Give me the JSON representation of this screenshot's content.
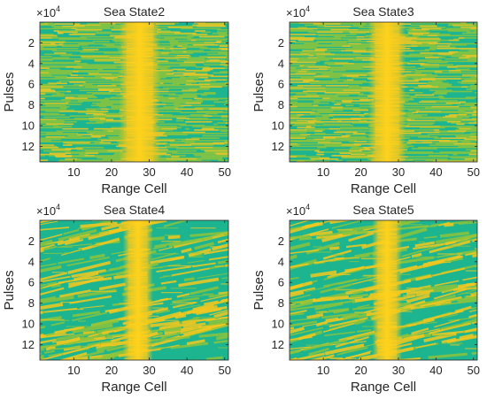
{
  "figure": {
    "multiplier": "×10",
    "multiplier_exp": "4"
  },
  "chart_data": [
    {
      "type": "heatmap",
      "title": "Sea State2",
      "xlabel": "Range Cell",
      "ylabel": "Pulses",
      "x_ticks": [
        10,
        20,
        30,
        40,
        50
      ],
      "y_ticks": [
        2,
        4,
        6,
        8,
        10,
        12
      ],
      "x_range": [
        1,
        51
      ],
      "y_range": [
        0,
        13.5
      ],
      "y_unit": "×10^4",
      "y_reversed": true,
      "grid": false,
      "pattern": "horizontal-streaks",
      "bright_band": [
        22,
        33
      ],
      "colors": {
        "low": "#1cb58f",
        "mid": "#8cc43c",
        "high": "#f4c81e",
        "peak": "#ffd21c"
      }
    },
    {
      "type": "heatmap",
      "title": "Sea State3",
      "xlabel": "Range Cell",
      "ylabel": "Pulses",
      "x_ticks": [
        10,
        20,
        30,
        40,
        50
      ],
      "y_ticks": [
        2,
        4,
        6,
        8,
        10,
        12
      ],
      "x_range": [
        1,
        51
      ],
      "y_range": [
        0,
        13.5
      ],
      "y_unit": "×10^4",
      "y_reversed": true,
      "grid": false,
      "pattern": "horizontal-streaks",
      "bright_band": [
        22,
        32
      ],
      "colors": {
        "low": "#1cb58f",
        "mid": "#8cc43c",
        "high": "#f4c81e",
        "peak": "#ffd21c"
      }
    },
    {
      "type": "heatmap",
      "title": "Sea State4",
      "xlabel": "Range Cell",
      "ylabel": "Pulses",
      "x_ticks": [
        10,
        20,
        30,
        40,
        50
      ],
      "y_ticks": [
        2,
        4,
        6,
        8,
        10,
        12
      ],
      "x_range": [
        1,
        51
      ],
      "y_range": [
        0,
        13.5
      ],
      "y_unit": "×10^4",
      "y_reversed": true,
      "grid": false,
      "pattern": "diagonal-waves",
      "bright_band": [
        23,
        31
      ],
      "colors": {
        "low": "#1cb58f",
        "mid": "#8cc43c",
        "high": "#f4c81e",
        "peak": "#ffd21c"
      }
    },
    {
      "type": "heatmap",
      "title": "Sea State5",
      "xlabel": "Range Cell",
      "ylabel": "Pulses",
      "x_ticks": [
        10,
        20,
        30,
        40,
        50
      ],
      "y_ticks": [
        2,
        4,
        6,
        8,
        10,
        12
      ],
      "x_range": [
        1,
        51
      ],
      "y_range": [
        0,
        13.5
      ],
      "y_unit": "×10^4",
      "y_reversed": true,
      "grid": false,
      "pattern": "diagonal-waves",
      "bright_band": [
        23,
        31
      ],
      "colors": {
        "low": "#1cb58f",
        "mid": "#8cc43c",
        "high": "#f4c81e",
        "peak": "#ffd21c"
      }
    }
  ]
}
